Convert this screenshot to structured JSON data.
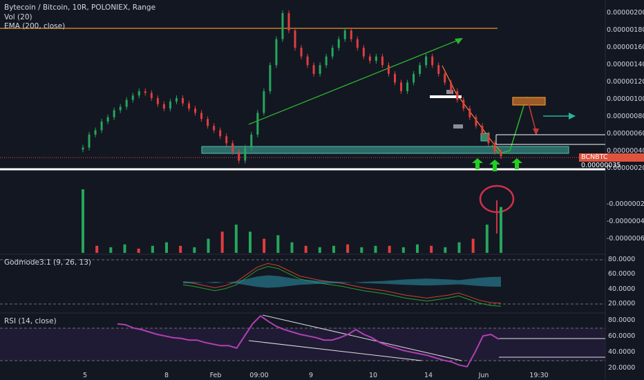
{
  "legend": {
    "main": "Bytecoin / Bitcoin, 10R, POLONIEX, Range",
    "vol": "Vol (20)",
    "ema": "EMA (200, close)",
    "godmode": "Godmode3.1 (9, 26, 13)",
    "rsi": "RSI (14, close)"
  },
  "price_axis_labels": [
    "0.00000200",
    "0.00000180",
    "0.00000160",
    "0.00000140",
    "0.00000120",
    "0.00000100",
    "0.00000080",
    "0.00000060",
    "0.00000040",
    "0.00000020"
  ],
  "volume_axis_labels": [
    "-0.00000020",
    "-0.00000040",
    "-0.00000060"
  ],
  "godmode_axis_labels": [
    "80.0000",
    "60.0000",
    "40.0000",
    "20.0000"
  ],
  "rsi_axis_labels": [
    "80.0000",
    "60.0000",
    "40.0000",
    "20.0000"
  ],
  "x_axis_labels": [
    "5",
    "8",
    "Feb",
    "09:00",
    "9",
    "10",
    "14",
    "Jun",
    "19:30"
  ],
  "current_price_tag": {
    "symbol": "BCNBTC",
    "value": "0.00000035"
  },
  "colors": {
    "up": "#26a65b",
    "down": "#e03e3e",
    "ema": "#f0a040",
    "zone": "#3fb3a6",
    "rsi": "#b340b3",
    "white": "#ffffff",
    "background": "#131722"
  },
  "chart_data": {
    "type": "candlestick",
    "title": "Bytecoin / Bitcoin, 10R, POLONIEX, Range",
    "ylabel": "",
    "ylim": [
      2e-07,
      2.1e-06
    ],
    "ema_level": 1.82e-06,
    "support_zone": [
      3.9e-07,
      4.6e-07
    ],
    "resistance_box": [
      9.7e-07,
      1.03e-06
    ],
    "white_line_level": 2e-07,
    "current_price": 3.5e-07,
    "close_series": [
      4.5e-07,
      6e-07,
      6.5e-07,
      7.5e-07,
      8e-07,
      8.8e-07,
      9.2e-07,
      1e-06,
      1.05e-06,
      1.1e-06,
      1.08e-06,
      1.02e-06,
      9.5e-07,
      9e-07,
      9.8e-07,
      1.02e-06,
      9.6e-07,
      9e-07,
      8.5e-07,
      7.8e-07,
      7e-07,
      6.5e-07,
      5.8e-07,
      5e-07,
      4e-07,
      3e-07,
      4.5e-07,
      6e-07,
      8.5e-07,
      1.1e-06,
      1.4e-06,
      1.7e-06,
      2e-06,
      1.8e-06,
      1.6e-06,
      1.5e-06,
      1.4e-06,
      1.3e-06,
      1.4e-06,
      1.5e-06,
      1.6e-06,
      1.7e-06,
      1.8e-06,
      1.7e-06,
      1.6e-06,
      1.5e-06,
      1.45e-06,
      1.5e-06,
      1.4e-06,
      1.3e-06,
      1.2e-06,
      1.1e-06,
      1.2e-06,
      1.3e-06,
      1.4e-06,
      1.5e-06,
      1.4e-06,
      1.3e-06,
      1.2e-06,
      1.1e-06,
      1e-06,
      9e-07,
      8e-07,
      7e-07,
      6e-07,
      5e-07,
      4e-07,
      3.5e-07
    ],
    "volume_series": [
      9e-07,
      1e-07,
      8e-08,
      1.2e-07,
      6e-08,
      1e-07,
      1.5e-07,
      1e-07,
      8e-08,
      2e-07,
      3e-07,
      4e-07,
      3e-07,
      2e-07,
      2.5e-07,
      1.5e-07,
      1e-07,
      8e-08,
      1e-07,
      1.2e-07,
      8e-08,
      1e-07,
      1e-07,
      8e-08,
      1.2e-07,
      1e-07,
      8e-08,
      1.5e-07,
      2e-07,
      4e-07,
      6.5e-07
    ],
    "godmode_series": [
      50,
      48,
      45,
      42,
      45,
      50,
      60,
      70,
      75,
      72,
      65,
      58,
      55,
      52,
      50,
      48,
      45,
      42,
      40,
      38,
      35,
      32,
      30,
      28,
      30,
      32,
      35,
      30,
      25,
      22,
      21
    ],
    "rsi_series": [
      75,
      74,
      70,
      68,
      65,
      62,
      60,
      58,
      57,
      55,
      55,
      52,
      50,
      48,
      48,
      45,
      60,
      75,
      85,
      78,
      72,
      68,
      65,
      62,
      60,
      58,
      55,
      55,
      58,
      62,
      68,
      62,
      58,
      52,
      48,
      45,
      42,
      40,
      38,
      36,
      33,
      30,
      28,
      24,
      22,
      40,
      60,
      62,
      56
    ]
  }
}
